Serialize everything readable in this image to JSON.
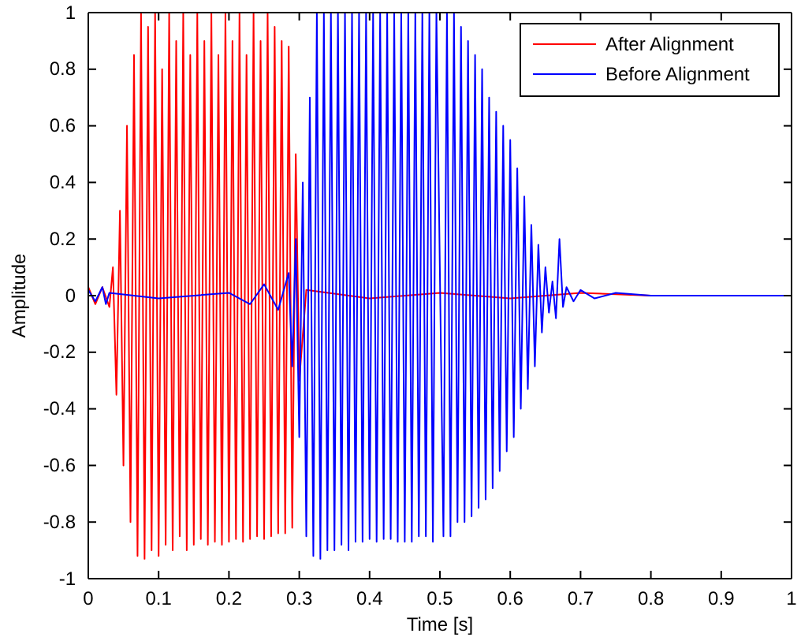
{
  "chart_data": {
    "type": "line",
    "xlabel": "Time [s]",
    "ylabel": "Amplitude",
    "xlim": [
      0,
      1
    ],
    "ylim": [
      -1,
      1
    ],
    "xticks": [
      0,
      0.1,
      0.2,
      0.3,
      0.4,
      0.5,
      0.6,
      0.7,
      0.8,
      0.9,
      1
    ],
    "yticks": [
      -1,
      -0.8,
      -0.6,
      -0.4,
      -0.2,
      0,
      0.2,
      0.4,
      0.6,
      0.8,
      1
    ],
    "grid": false,
    "legend": "top right",
    "marker": "none",
    "line_style": "solid",
    "series": [
      {
        "name": "After Alignment",
        "color": "#ff0000",
        "x": [
          0,
          0.01,
          0.02,
          0.03,
          0.035,
          0.04,
          0.045,
          0.05,
          0.055,
          0.06,
          0.065,
          0.07,
          0.075,
          0.08,
          0.085,
          0.09,
          0.095,
          0.1,
          0.105,
          0.11,
          0.115,
          0.12,
          0.125,
          0.13,
          0.135,
          0.14,
          0.145,
          0.15,
          0.155,
          0.16,
          0.165,
          0.17,
          0.175,
          0.18,
          0.185,
          0.19,
          0.195,
          0.2,
          0.205,
          0.21,
          0.215,
          0.22,
          0.225,
          0.23,
          0.235,
          0.24,
          0.245,
          0.25,
          0.255,
          0.26,
          0.265,
          0.27,
          0.275,
          0.28,
          0.285,
          0.29,
          0.295,
          0.3,
          0.31,
          0.4,
          0.5,
          0.6,
          0.7,
          0.8,
          0.9,
          1
        ],
        "values": [
          0.03,
          -0.03,
          0.03,
          -0.04,
          0.1,
          -0.35,
          0.3,
          -0.6,
          0.6,
          -0.8,
          0.85,
          -0.92,
          1,
          -0.93,
          0.95,
          -0.9,
          1,
          -0.92,
          0.8,
          -0.88,
          1,
          -0.9,
          0.9,
          -0.85,
          1,
          -0.9,
          0.85,
          -0.88,
          1,
          -0.86,
          0.9,
          -0.88,
          1,
          -0.87,
          0.85,
          -0.88,
          1,
          -0.87,
          0.9,
          -0.86,
          1,
          -0.87,
          0.85,
          -0.86,
          1,
          -0.85,
          0.9,
          -0.86,
          1,
          -0.85,
          0.95,
          -0.84,
          0.9,
          -0.84,
          0.88,
          -0.82,
          0.5,
          -0.3,
          0.02,
          -0.01,
          0.01,
          -0.01,
          0.01,
          0,
          0,
          0
        ]
      },
      {
        "name": "Before Alignment",
        "color": "#0000ff",
        "x": [
          0,
          0.01,
          0.02,
          0.025,
          0.03,
          0.1,
          0.2,
          0.23,
          0.25,
          0.27,
          0.285,
          0.29,
          0.295,
          0.3,
          0.305,
          0.31,
          0.315,
          0.32,
          0.325,
          0.33,
          0.335,
          0.34,
          0.345,
          0.35,
          0.355,
          0.36,
          0.365,
          0.37,
          0.375,
          0.38,
          0.385,
          0.39,
          0.395,
          0.4,
          0.405,
          0.41,
          0.415,
          0.42,
          0.425,
          0.43,
          0.435,
          0.44,
          0.445,
          0.45,
          0.455,
          0.46,
          0.465,
          0.47,
          0.475,
          0.48,
          0.485,
          0.49,
          0.495,
          0.505,
          0.51,
          0.515,
          0.52,
          0.525,
          0.53,
          0.535,
          0.54,
          0.545,
          0.55,
          0.555,
          0.56,
          0.565,
          0.57,
          0.575,
          0.58,
          0.585,
          0.59,
          0.595,
          0.6,
          0.605,
          0.61,
          0.615,
          0.62,
          0.625,
          0.63,
          0.635,
          0.64,
          0.645,
          0.65,
          0.655,
          0.66,
          0.665,
          0.67,
          0.675,
          0.68,
          0.69,
          0.7,
          0.72,
          0.75,
          0.8,
          0.9,
          1
        ],
        "values": [
          0.02,
          -0.02,
          0.03,
          -0.03,
          0.01,
          -0.01,
          0.01,
          -0.03,
          0.04,
          -0.05,
          0.08,
          -0.25,
          0.2,
          -0.5,
          0.4,
          -0.85,
          0.7,
          -0.92,
          1,
          -0.93,
          1,
          -0.9,
          1,
          -0.9,
          1,
          -0.88,
          1,
          -0.9,
          1,
          -0.87,
          1,
          -0.87,
          1,
          -0.86,
          1,
          -0.87,
          1,
          -0.86,
          1,
          -0.86,
          1,
          -0.87,
          1,
          -0.87,
          1,
          -0.87,
          1,
          -0.85,
          1,
          -0.85,
          1,
          -0.87,
          1,
          -0.85,
          1,
          -0.85,
          1,
          -0.8,
          0.95,
          -0.8,
          0.9,
          -0.78,
          0.85,
          -0.75,
          0.8,
          -0.72,
          0.7,
          -0.68,
          0.65,
          -0.62,
          0.6,
          -0.55,
          0.55,
          -0.5,
          0.45,
          -0.4,
          0.35,
          -0.33,
          0.25,
          -0.25,
          0.18,
          -0.13,
          0.1,
          -0.06,
          0.05,
          -0.08,
          0.2,
          -0.04,
          0.03,
          -0.02,
          0.02,
          -0.01,
          0.01,
          0,
          0,
          0
        ]
      }
    ]
  }
}
